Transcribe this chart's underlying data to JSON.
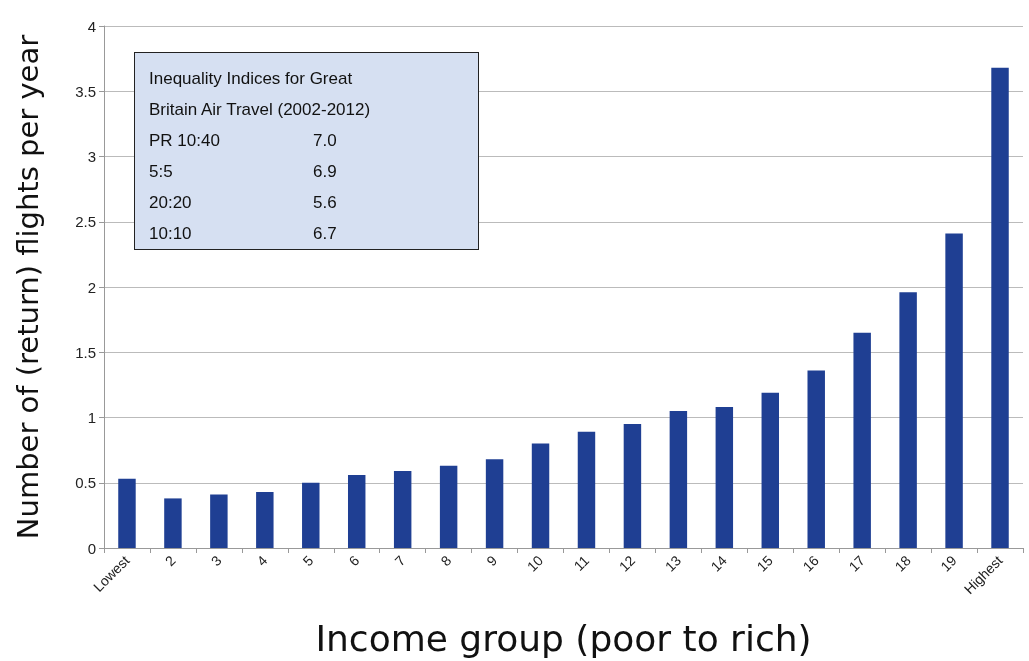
{
  "chart_data": {
    "type": "bar",
    "xlabel": "Income group (poor to rich)",
    "ylabel": "Number of (return) flights per year",
    "categories": [
      "Lowest",
      "2",
      "3",
      "4",
      "5",
      "6",
      "7",
      "8",
      "9",
      "10",
      "11",
      "12",
      "13",
      "14",
      "15",
      "16",
      "17",
      "18",
      "19",
      "Highest"
    ],
    "values": [
      0.53,
      0.38,
      0.41,
      0.43,
      0.5,
      0.56,
      0.59,
      0.63,
      0.68,
      0.8,
      0.89,
      0.95,
      1.05,
      1.08,
      1.19,
      1.36,
      1.65,
      1.96,
      2.41,
      3.68
    ],
    "color": "#1f3f93",
    "ylim": [
      0,
      4
    ],
    "yticks": [
      0,
      0.5,
      1,
      1.5,
      2,
      2.5,
      3,
      3.5,
      4
    ],
    "grid": "y",
    "annotations": [
      "Inequality Indices for Great Britain Air Travel (2002-2012)",
      "PR 10:40    7.0",
      "5:5    6.9",
      "20:20    5.6",
      "10:10    6.7"
    ]
  }
}
